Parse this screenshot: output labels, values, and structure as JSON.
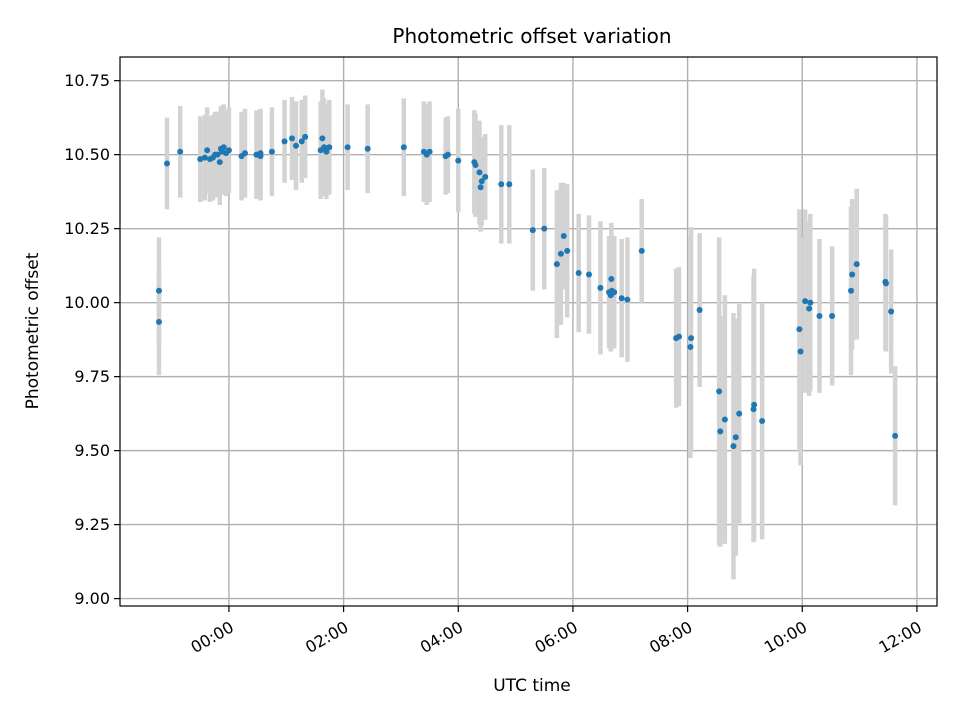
{
  "chart_data": {
    "type": "scatter",
    "title": "Photometric offset variation",
    "xlabel": "UTC time",
    "ylabel": "Photometric offset",
    "x_unit": "hours UTC",
    "xlim": [
      -1.9,
      12.35
    ],
    "ylim": [
      8.975,
      10.83
    ],
    "grid": true,
    "xticks": [
      0,
      2,
      4,
      6,
      8,
      10,
      12
    ],
    "xtick_labels": [
      "00:00",
      "02:00",
      "04:00",
      "06:00",
      "08:00",
      "10:00",
      "12:00"
    ],
    "yticks": [
      9.0,
      9.25,
      9.5,
      9.75,
      10.0,
      10.25,
      10.5,
      10.75
    ],
    "ytick_labels": [
      "9.00",
      "9.25",
      "9.50",
      "9.75",
      "10.00",
      "10.25",
      "10.50",
      "10.75"
    ],
    "colors": {
      "points": "#1f77b4",
      "error_bars": "#d3d3d3",
      "grid": "#b0b0b0"
    },
    "series": [
      {
        "x": [
          -1.22,
          -1.22,
          -1.08,
          -0.85,
          -0.5,
          -0.42,
          -0.38,
          -0.33,
          -0.28,
          -0.24,
          -0.2,
          -0.16,
          -0.14,
          -0.12,
          -0.09,
          -0.05,
          0.0,
          0.22,
          0.28,
          0.48,
          0.55,
          0.55,
          0.75,
          0.97,
          1.1,
          1.17,
          1.27,
          1.33,
          1.6,
          1.63,
          1.66,
          1.7,
          1.75,
          2.07,
          2.42,
          3.05,
          3.4,
          3.45,
          3.5,
          3.78,
          3.82,
          4.0,
          4.28,
          4.3,
          4.37,
          4.39,
          4.41,
          4.47,
          4.75,
          4.89,
          5.3,
          5.5,
          5.72,
          5.79,
          5.84,
          5.9,
          6.1,
          6.28,
          6.48,
          6.63,
          6.66,
          6.67,
          6.68,
          6.72,
          6.85,
          6.95,
          7.2,
          7.8,
          7.85,
          8.05,
          8.06,
          8.21,
          8.55,
          8.57,
          8.65,
          8.8,
          8.84,
          8.9,
          9.15,
          9.16,
          9.3,
          9.95,
          9.97,
          10.05,
          10.12,
          10.14,
          10.3,
          10.52,
          10.85,
          10.87,
          10.95,
          11.45,
          11.46,
          11.55,
          11.62
        ],
        "y": [
          10.04,
          9.935,
          10.47,
          10.51,
          10.485,
          10.49,
          10.515,
          10.485,
          10.49,
          10.5,
          10.5,
          10.475,
          10.52,
          10.51,
          10.525,
          10.505,
          10.515,
          10.495,
          10.505,
          10.5,
          10.495,
          10.505,
          10.51,
          10.545,
          10.555,
          10.53,
          10.545,
          10.56,
          10.515,
          10.555,
          10.525,
          10.51,
          10.525,
          10.525,
          10.52,
          10.525,
          10.51,
          10.5,
          10.51,
          10.495,
          10.5,
          10.48,
          10.475,
          10.465,
          10.44,
          10.39,
          10.41,
          10.425,
          10.4,
          10.4,
          10.245,
          10.25,
          10.13,
          10.165,
          10.225,
          10.175,
          10.1,
          10.095,
          10.05,
          10.035,
          10.025,
          10.08,
          10.04,
          10.035,
          10.015,
          10.01,
          10.175,
          9.88,
          9.885,
          9.85,
          9.88,
          9.975,
          9.7,
          9.565,
          9.605,
          9.515,
          9.545,
          9.625,
          9.64,
          9.655,
          9.6,
          9.91,
          9.835,
          10.005,
          9.98,
          10.0,
          9.955,
          9.955,
          10.04,
          10.095,
          10.13,
          10.07,
          10.065,
          9.97,
          9.55
        ],
        "yerr": [
          0.18,
          0.18,
          0.155,
          0.155,
          0.145,
          0.145,
          0.145,
          0.145,
          0.145,
          0.145,
          0.145,
          0.145,
          0.145,
          0.145,
          0.145,
          0.145,
          0.145,
          0.15,
          0.15,
          0.15,
          0.15,
          0.15,
          0.15,
          0.14,
          0.14,
          0.15,
          0.14,
          0.14,
          0.165,
          0.165,
          0.165,
          0.16,
          0.16,
          0.145,
          0.15,
          0.165,
          0.17,
          0.17,
          0.17,
          0.13,
          0.13,
          0.175,
          0.175,
          0.175,
          0.175,
          0.15,
          0.15,
          0.145,
          0.2,
          0.2,
          0.205,
          0.205,
          0.25,
          0.24,
          0.18,
          0.225,
          0.2,
          0.2,
          0.225,
          0.19,
          0.19,
          0.19,
          0.19,
          0.19,
          0.2,
          0.21,
          0.175,
          0.235,
          0.235,
          0.375,
          0.375,
          0.26,
          0.52,
          0.39,
          0.42,
          0.45,
          0.4,
          0.37,
          0.45,
          0.46,
          0.4,
          0.405,
          0.385,
          0.31,
          0.295,
          0.3,
          0.26,
          0.235,
          0.285,
          0.255,
          0.255,
          0.23,
          0.23,
          0.21,
          0.235
        ]
      }
    ]
  }
}
